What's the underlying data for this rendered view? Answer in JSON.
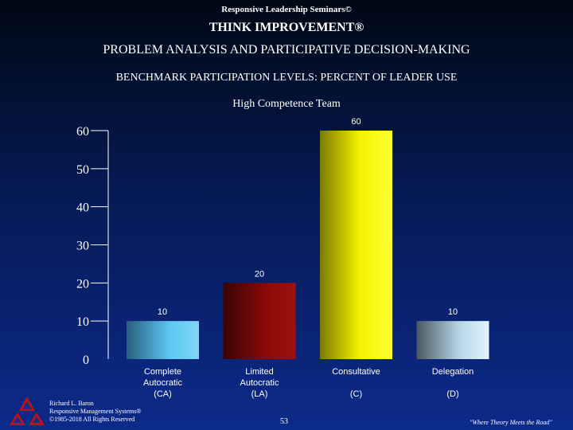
{
  "header": {
    "brand": "Responsive Leadership Seminars©",
    "title": "THINK IMPROVEMENT®",
    "subtitle": "PROBLEM ANALYSIS AND PARTICIPATIVE DECISION-MAKING",
    "section": "BENCHMARK PARTICIPATION LEVELS:  PERCENT OF LEADER USE"
  },
  "chart_data": {
    "type": "bar",
    "title": "High Competence Team",
    "categories": [
      [
        "Complete",
        "Autocratic",
        "(CA)"
      ],
      [
        "Limited",
        "Autocratic",
        "(LA)"
      ],
      [
        "Consultative",
        "",
        "(C)"
      ],
      [
        "Delegation",
        "",
        "(D)"
      ]
    ],
    "values": [
      10,
      20,
      60,
      10
    ],
    "yticks": [
      0,
      10,
      20,
      30,
      40,
      50,
      60
    ],
    "ylim": [
      0,
      60
    ],
    "grid": false,
    "colors": [
      "#5cc8f2",
      "#8c0a0a",
      "#f5f200",
      "#cfe9f6"
    ]
  },
  "footer": {
    "author_lines": [
      "Richard L. Baron",
      "Responsive Management Systems®",
      "©1985-2018 All Rights Reserved"
    ],
    "page_number": "53",
    "tagline": "\"Where Theory Meets the Road\""
  }
}
